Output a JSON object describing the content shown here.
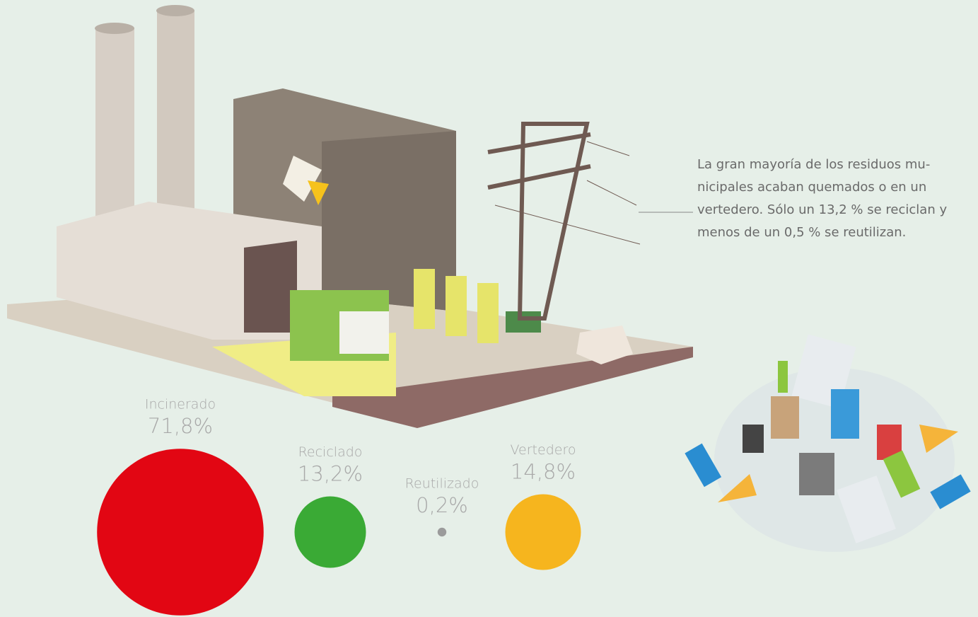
{
  "chart_data": {
    "type": "bubble",
    "categories": [
      "Incinerado",
      "Reciclado",
      "Reutilizado",
      "Vertedero"
    ],
    "values": [
      71.8,
      13.2,
      0.2,
      14.8
    ],
    "value_labels": [
      "71,8%",
      "13,2%",
      "0,2%",
      "14,8%"
    ],
    "colors": [
      "#e20613",
      "#3aaa35",
      "#9b9b9b",
      "#f6b51e"
    ],
    "annotation_lines": [
      "La gran mayoría de los residuos mu-",
      "nicipales acaban quemados o en un",
      "vertedero. Sólo un 13,2 % se reciclan y",
      "menos de un 0,5 % se reutilizan."
    ]
  }
}
